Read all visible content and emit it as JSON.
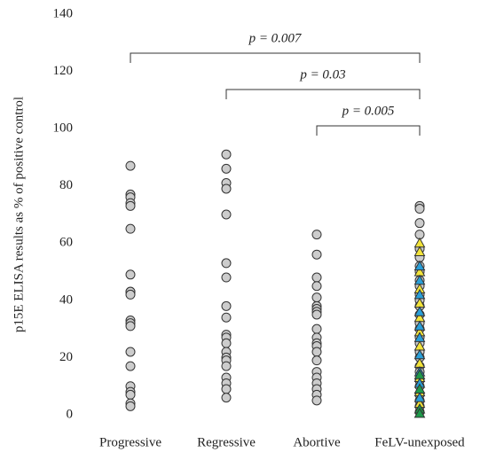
{
  "chart_data": {
    "type": "strip",
    "y_label": "p15E ELISA results as % of positive control",
    "ylim": [
      0,
      140
    ],
    "yticks": [
      0,
      20,
      40,
      60,
      80,
      100,
      120,
      140
    ],
    "categories": [
      "Progressive",
      "Regressive",
      "Abortive",
      "FeLV-unexposed"
    ],
    "point_color": "#cccccc",
    "groups": [
      {
        "values": [
          87,
          77,
          76,
          74,
          73,
          65,
          49,
          43,
          43,
          42,
          33,
          32,
          31,
          22,
          17,
          10,
          8,
          7,
          4,
          3
        ]
      },
      {
        "values": [
          91,
          86,
          81,
          79,
          70,
          53,
          48,
          38,
          34,
          28,
          27,
          25,
          22,
          20,
          19,
          17,
          13,
          11,
          9,
          6
        ]
      },
      {
        "values": [
          63,
          56,
          48,
          45,
          41,
          38,
          37,
          36,
          35,
          30,
          27,
          25,
          24,
          22,
          19,
          15,
          13,
          11,
          9,
          7,
          5
        ]
      },
      {
        "values": [
          73,
          72,
          67,
          63,
          58,
          55,
          52,
          50,
          47,
          45,
          42,
          40,
          38,
          35,
          32,
          30,
          27,
          25,
          22,
          20,
          17,
          15,
          12,
          10,
          7,
          5,
          3,
          1
        ],
        "triangles": [
          {
            "color": "#f2e33a",
            "values": [
              60,
              57,
              50,
              44,
              39,
              34,
              29,
              24,
              18,
              13,
              8,
              4
            ]
          },
          {
            "color": "#2a9fd8",
            "values": [
              52,
              47,
              42,
              36,
              31,
              27,
              21,
              15,
              11,
              6
            ]
          },
          {
            "color": "#1e9a4a",
            "values": [
              14,
              9,
              2,
              0.5
            ]
          }
        ]
      }
    ],
    "comparisons": [
      {
        "label": "p = 0.007",
        "between": [
          "Progressive",
          "FeLV-unexposed"
        ]
      },
      {
        "label": "p = 0.03",
        "between": [
          "Regressive",
          "FeLV-unexposed"
        ]
      },
      {
        "label": "p = 0.005",
        "between": [
          "Abortive",
          "FeLV-unexposed"
        ]
      }
    ]
  }
}
